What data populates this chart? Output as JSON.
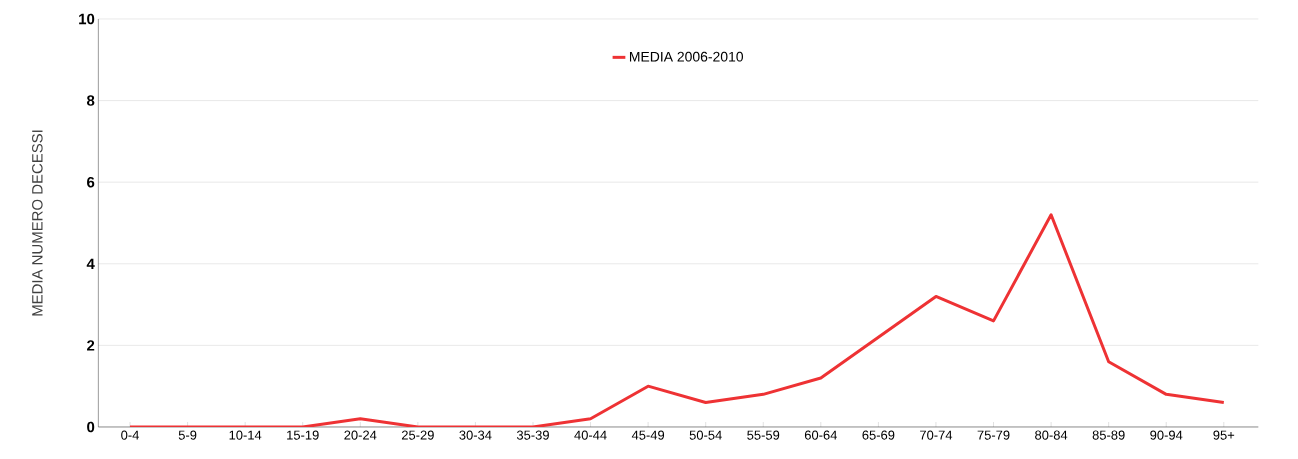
{
  "chart_data": {
    "type": "line",
    "ylabel": "MEDIA NUMERO DECESSI",
    "categories": [
      "0-4",
      "5-9",
      "10-14",
      "15-19",
      "20-24",
      "25-29",
      "30-34",
      "35-39",
      "40-44",
      "45-49",
      "50-54",
      "55-59",
      "60-64",
      "65-69",
      "70-74",
      "75-79",
      "80-84",
      "85-89",
      "90-94",
      "95+"
    ],
    "series": [
      {
        "name": "MEDIA 2006-2010",
        "color": "#ee3234",
        "values": [
          0,
          0,
          0,
          0,
          0.2,
          0,
          0,
          0,
          0.2,
          1.0,
          0.6,
          0.8,
          1.2,
          2.2,
          3.2,
          2.6,
          5.2,
          1.6,
          0.8,
          0.6
        ]
      }
    ],
    "ylim": [
      0,
      10
    ],
    "yticks": [
      0,
      2,
      4,
      6,
      8,
      10
    ],
    "grid": "y",
    "legend": "top",
    "marker": "none",
    "line_style": "solid"
  }
}
